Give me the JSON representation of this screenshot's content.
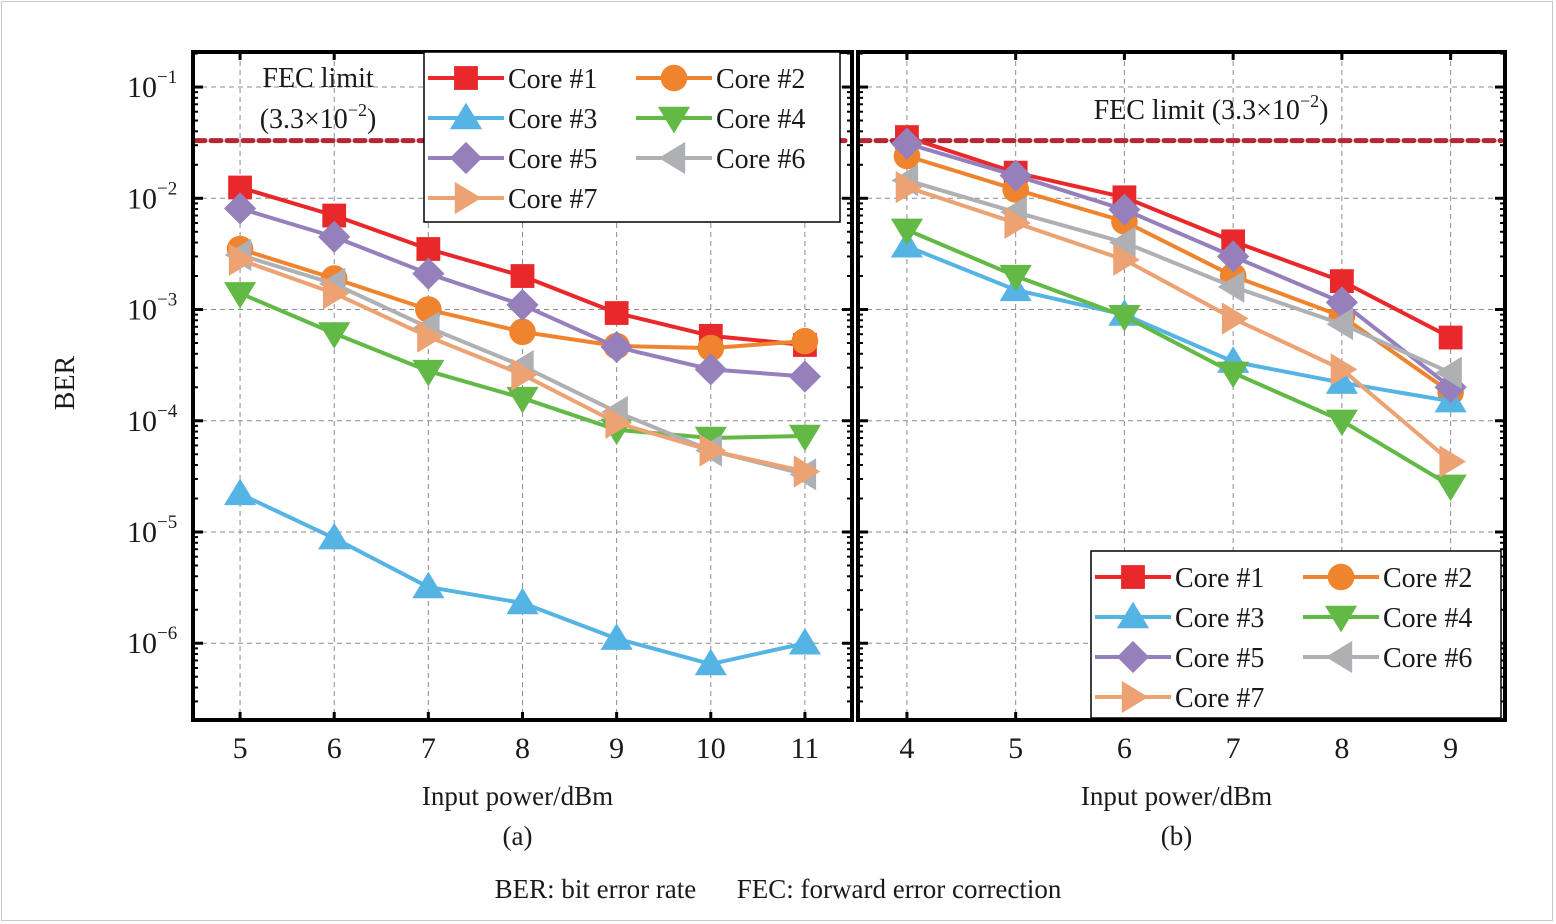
{
  "figure": {
    "y_label": "BER",
    "caption": "BER: bit error rate      FEC: forward error correction"
  },
  "legend_entries": [
    {
      "name": "Core #1",
      "color": "#e8282a",
      "marker": "square"
    },
    {
      "name": "Core #2",
      "color": "#f0842e",
      "marker": "circle"
    },
    {
      "name": "Core #3",
      "color": "#56b4e4",
      "marker": "triangle-up"
    },
    {
      "name": "Core #4",
      "color": "#62b946",
      "marker": "triangle-down"
    },
    {
      "name": "Core #5",
      "color": "#9580bc",
      "marker": "diamond"
    },
    {
      "name": "Core #6",
      "color": "#aeb0b3",
      "marker": "triangle-left"
    },
    {
      "name": "Core #7",
      "color": "#eda274",
      "marker": "triangle-right"
    }
  ],
  "fec_color": "#b32832",
  "chart_data": [
    {
      "type": "line",
      "panel_label": "(a)",
      "title": "",
      "xlabel": "Input power/dBm",
      "ylabel": "BER",
      "yscale": "log",
      "ylim": [
        2e-07,
        0.2
      ],
      "xlim": [
        4.5,
        11.5
      ],
      "x": [
        5,
        6,
        7,
        8,
        9,
        10,
        11
      ],
      "x_ticks": [
        "5",
        "6",
        "7",
        "8",
        "9",
        "10",
        "11"
      ],
      "y_ticks": [
        {
          "exp": "-1",
          "value": 0.1
        },
        {
          "exp": "-2",
          "value": 0.01
        },
        {
          "exp": "-3",
          "value": 0.001
        },
        {
          "exp": "-4",
          "value": 0.0001
        },
        {
          "exp": "-5",
          "value": 1e-05
        },
        {
          "exp": "-6",
          "value": 1e-06
        }
      ],
      "grid": true,
      "legend_position": "top-right",
      "fec_limit": {
        "value": 0.033,
        "label_line1": "FEC limit",
        "label_line2": "(3.3×10",
        "label_exp": "−2",
        "label_close": ")"
      },
      "series": [
        {
          "name": "Core #1",
          "values": [
            0.0125,
            0.007,
            0.0035,
            0.002,
            0.00093,
            0.00058,
            0.00048
          ]
        },
        {
          "name": "Core #2",
          "values": [
            0.0035,
            0.0019,
            0.001,
            0.00063,
            0.00047,
            0.00045,
            0.00052
          ]
        },
        {
          "name": "Core #3",
          "values": [
            2.2e-05,
            8.8e-06,
            3.2e-06,
            2.3e-06,
            1.1e-06,
            6.5e-07,
            1e-06
          ]
        },
        {
          "name": "Core #4",
          "values": [
            0.0014,
            0.00061,
            0.00028,
            0.00016,
            8.3e-05,
            7e-05,
            7.3e-05
          ]
        },
        {
          "name": "Core #5",
          "values": [
            0.0081,
            0.0045,
            0.0021,
            0.0011,
            0.00046,
            0.00029,
            0.00025
          ]
        },
        {
          "name": "Core #6",
          "values": [
            0.0031,
            0.0017,
            0.00069,
            0.00031,
            0.00012,
            5.4e-05,
            3.3e-05
          ]
        },
        {
          "name": "Core #7",
          "values": [
            0.0028,
            0.0014,
            0.00057,
            0.00026,
            9.6e-05,
            5.4e-05,
            3.5e-05
          ]
        }
      ]
    },
    {
      "type": "line",
      "panel_label": "(b)",
      "title": "",
      "xlabel": "Input power/dBm",
      "ylabel": "BER",
      "yscale": "log",
      "ylim": [
        2e-07,
        0.2
      ],
      "xlim": [
        3.55,
        9.5
      ],
      "x": [
        4,
        5,
        6,
        7,
        8,
        9
      ],
      "x_ticks": [
        "4",
        "5",
        "6",
        "7",
        "8",
        "9"
      ],
      "grid": true,
      "legend_position": "bottom-right",
      "fec_limit": {
        "value": 0.033,
        "label_line1": "FEC limit (3.3×10",
        "label_exp": "−2",
        "label_close": ")"
      },
      "series": [
        {
          "name": "Core #1",
          "values": [
            0.0355,
            0.017,
            0.0102,
            0.0041,
            0.0018,
            0.00056
          ]
        },
        {
          "name": "Core #2",
          "values": [
            0.024,
            0.012,
            0.0062,
            0.002,
            0.00087,
            0.00018
          ]
        },
        {
          "name": "Core #3",
          "values": [
            0.0037,
            0.0015,
            0.0009,
            0.00034,
            0.00022,
            0.00015
          ]
        },
        {
          "name": "Core #4",
          "values": [
            0.0052,
            0.002,
            0.00087,
            0.00027,
            0.0001,
            2.6e-05
          ]
        },
        {
          "name": "Core #5",
          "values": [
            0.031,
            0.016,
            0.0079,
            0.003,
            0.00116,
            0.0002
          ]
        },
        {
          "name": "Core #6",
          "values": [
            0.0145,
            0.0075,
            0.004,
            0.0016,
            0.00074,
            0.00027
          ]
        },
        {
          "name": "Core #7",
          "values": [
            0.0126,
            0.006,
            0.0028,
            0.00083,
            0.00029,
            4.3e-05
          ]
        }
      ]
    }
  ]
}
